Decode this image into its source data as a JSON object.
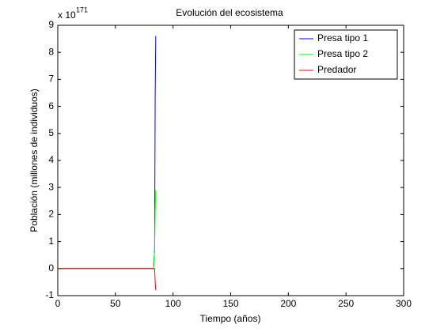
{
  "chart_data": {
    "type": "line",
    "title": "Evolución del ecosistema",
    "xlabel": "Tiempo (años)",
    "ylabel": "Población (millones de individuos)",
    "scale_label": "x 10",
    "scale_exponent": "171",
    "x": [
      0,
      83,
      84,
      84.5,
      85
    ],
    "series": [
      {
        "name": "Presa tipo 1",
        "color": "#0000ff",
        "values": [
          0,
          0,
          0.7,
          6.4,
          8.6
        ]
      },
      {
        "name": "Presa tipo 2",
        "color": "#00ff00",
        "values": [
          0,
          0,
          0.7,
          2.1,
          2.9
        ]
      },
      {
        "name": "Predador",
        "color": "#ff0000",
        "values": [
          0,
          0,
          0,
          -0.5,
          -0.8
        ]
      }
    ],
    "xlim": [
      0,
      300
    ],
    "xticks": [
      0,
      50,
      100,
      150,
      200,
      250,
      300
    ],
    "ylim": [
      -1,
      9
    ],
    "yticks": [
      -1,
      0,
      1,
      2,
      3,
      4,
      5,
      6,
      7,
      8,
      9
    ],
    "grid": false,
    "legend": "upper right"
  }
}
